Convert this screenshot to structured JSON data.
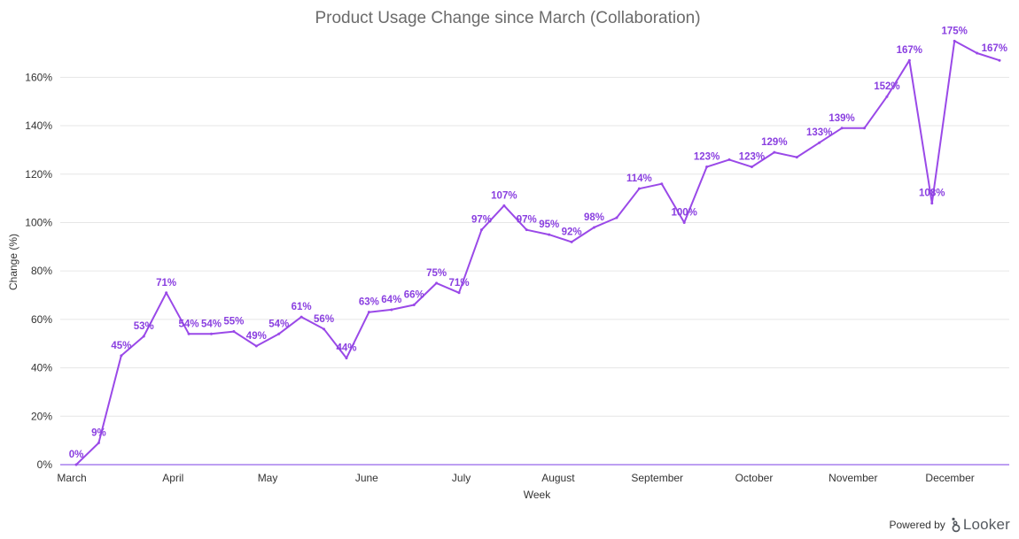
{
  "colors": {
    "series": "#9a49e8",
    "label": "#8a3fe0",
    "grid": "#e6e6e6",
    "text": "#333333",
    "title": "#6b6b6b"
  },
  "footer": {
    "powered_by": "Powered by",
    "brand": "Looker"
  },
  "chart_data": {
    "type": "line",
    "title": "Product Usage Change since March (Collaboration)",
    "xlabel": "Week",
    "ylabel": "Change (%)",
    "ylim": [
      0,
      170
    ],
    "yticks": [
      0,
      20,
      40,
      60,
      80,
      100,
      120,
      140,
      160
    ],
    "ytick_labels": [
      "0%",
      "20%",
      "40%",
      "60%",
      "80%",
      "100%",
      "120%",
      "140%",
      "160%"
    ],
    "grid": true,
    "legend": "none",
    "x_month_labels": [
      {
        "label": "March",
        "week_index": 0
      },
      {
        "label": "April",
        "week_index": 4.3
      },
      {
        "label": "May",
        "week_index": 8.5
      },
      {
        "label": "June",
        "week_index": 12.9
      },
      {
        "label": "July",
        "week_index": 17.1
      },
      {
        "label": "August",
        "week_index": 21.4
      },
      {
        "label": "September",
        "week_index": 25.8
      },
      {
        "label": "October",
        "week_index": 30.1
      },
      {
        "label": "November",
        "week_index": 34.5
      },
      {
        "label": "December",
        "week_index": 38.8
      }
    ],
    "series": [
      {
        "values": [
          0,
          9,
          45,
          53,
          71,
          54,
          54,
          55,
          49,
          54,
          61,
          56,
          44,
          63,
          64,
          66,
          75,
          71,
          97,
          107,
          97,
          95,
          92,
          98,
          102,
          114,
          116,
          100,
          123,
          126,
          123,
          129,
          127,
          133,
          139,
          139,
          152,
          167,
          108,
          175,
          170,
          167
        ],
        "labels": [
          "0%",
          "9%",
          "45%",
          "53%",
          "71%",
          "54%",
          "54%",
          "55%",
          "49%",
          "54%",
          "61%",
          "56%",
          "44%",
          "63%",
          "64%",
          "66%",
          "75%",
          "71%",
          "97%",
          "107%",
          "97%",
          "95%",
          "92%",
          "98%",
          "",
          "114%",
          "",
          "100%",
          "123%",
          "",
          "123%",
          "129%",
          "",
          "133%",
          "139%",
          "",
          "152%",
          "167%",
          "108%",
          "175%",
          "",
          "167%"
        ]
      }
    ]
  }
}
